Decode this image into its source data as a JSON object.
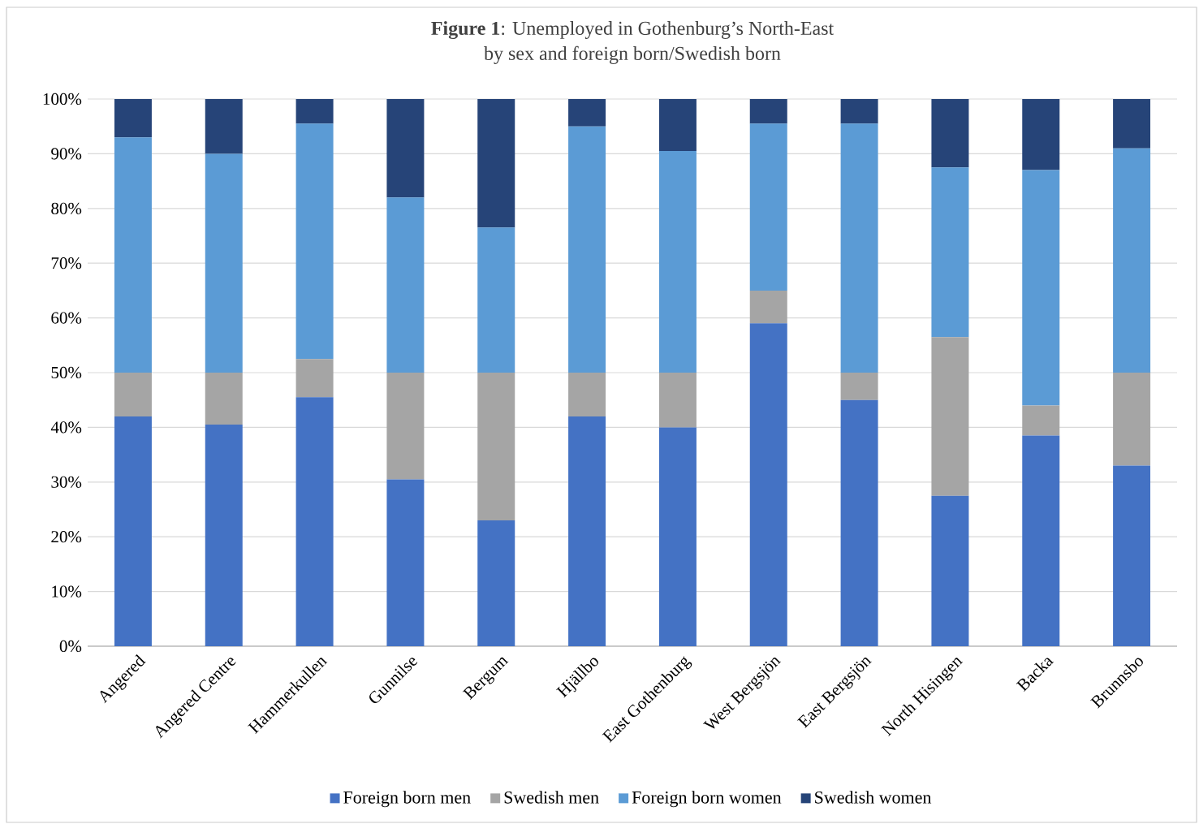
{
  "chart_data": {
    "type": "bar",
    "stacked": true,
    "title": "**Figure 1**: Unemployed in Gothenburg’s North-East",
    "subtitle": "by sex and foreign born/Swedish born",
    "categories": [
      "Angered",
      "Angered Centre",
      "Hammerkullen",
      "Gunnilse",
      "Bergum",
      "Hjällbo",
      "East Gothenburg",
      "West Bergsjön",
      "East Bergsjön",
      "North Hisingen",
      "Backa",
      "Brunnsbo"
    ],
    "series": [
      {
        "name": "Foreign born men",
        "color": "#4472c4",
        "values": [
          42,
          40.5,
          45.5,
          30.5,
          23,
          42,
          40,
          59,
          45,
          27.5,
          38.5,
          33
        ]
      },
      {
        "name": "Swedish men",
        "color": "#a5a5a5",
        "values": [
          8,
          9.5,
          7,
          19.5,
          27,
          8,
          10,
          6,
          5,
          29,
          5.5,
          17
        ]
      },
      {
        "name": "Foreign born women",
        "color": "#5b9bd5",
        "values": [
          43,
          40,
          43,
          32,
          26.5,
          45,
          40.5,
          30.5,
          45.5,
          31,
          43,
          41
        ]
      },
      {
        "name": "Swedish women",
        "color": "#264478",
        "values": [
          7,
          10,
          4.5,
          18,
          23.5,
          5,
          9.5,
          4.5,
          4.5,
          12.5,
          13,
          9
        ]
      }
    ],
    "ylim": [
      0,
      100
    ],
    "yticks": [
      {
        "value": 0,
        "label": "0%"
      },
      {
        "value": 10,
        "label": "10%"
      },
      {
        "value": 20,
        "label": "20%"
      },
      {
        "value": 30,
        "label": "30%"
      },
      {
        "value": 40,
        "label": "40%"
      },
      {
        "value": 50,
        "label": "50%"
      },
      {
        "value": 60,
        "label": "60%"
      },
      {
        "value": 70,
        "label": "70%"
      },
      {
        "value": 80,
        "label": "80%"
      },
      {
        "value": 90,
        "label": "90%"
      },
      {
        "value": 100,
        "label": "100%"
      }
    ],
    "grid": "y",
    "legend": "bottom"
  }
}
